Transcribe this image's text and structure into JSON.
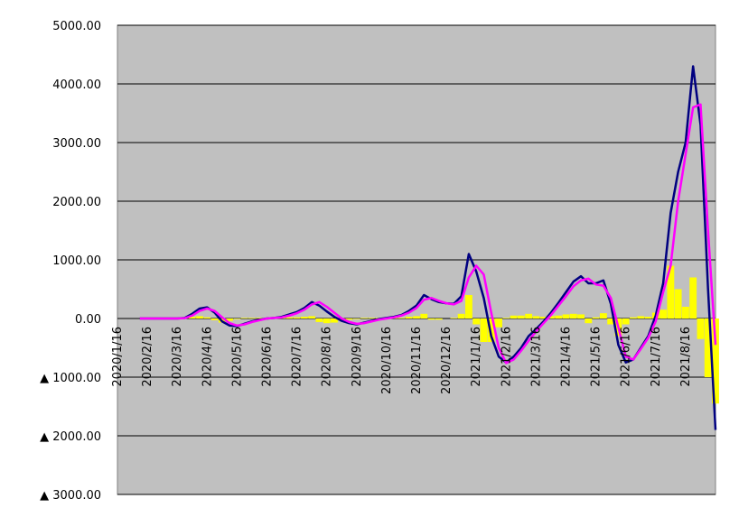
{
  "chart_data": {
    "type": "line",
    "categories": [
      "2020/1/16",
      null,
      null,
      null,
      "2020/2/16",
      null,
      null,
      null,
      "2020/3/16",
      null,
      null,
      null,
      "2020/4/16",
      null,
      null,
      null,
      "2020/5/16",
      null,
      null,
      null,
      "2020/6/16",
      null,
      null,
      null,
      "2020/7/16",
      null,
      null,
      null,
      "2020/8/16",
      null,
      null,
      null,
      "2020/9/16",
      null,
      null,
      null,
      "2020/10/16",
      null,
      null,
      null,
      "2020/11/16",
      null,
      null,
      null,
      "2020/12/16",
      null,
      null,
      null,
      "2021/1/16",
      null,
      null,
      null,
      "2021/2/16",
      null,
      null,
      null,
      "2021/3/16",
      null,
      null,
      null,
      "2021/4/16",
      null,
      null,
      null,
      "2021/5/16",
      null,
      null,
      null,
      "2021/6/16",
      null,
      null,
      null,
      "2021/7/16",
      null,
      null,
      null,
      "2021/8/16",
      null,
      null,
      null,
      null
    ],
    "series": [
      {
        "type": "bar",
        "color": "#ffff00",
        "values": [
          null,
          null,
          null,
          0,
          0,
          0,
          0,
          0,
          0,
          5,
          30,
          40,
          20,
          -30,
          -70,
          -40,
          -10,
          10,
          10,
          10,
          0,
          0,
          10,
          20,
          20,
          30,
          40,
          -60,
          -80,
          -70,
          -40,
          -20,
          -10,
          10,
          10,
          10,
          10,
          10,
          10,
          30,
          40,
          80,
          -20,
          -20,
          0,
          10,
          80,
          400,
          -100,
          -400,
          -400,
          -150,
          10,
          50,
          50,
          80,
          40,
          30,
          40,
          50,
          70,
          80,
          70,
          -80,
          20,
          90,
          -100,
          -300,
          -100,
          20,
          40,
          30,
          100,
          150,
          900,
          500,
          200,
          700,
          -350,
          -1000,
          -1450
        ]
      },
      {
        "type": "line",
        "color": "#000080",
        "values": [
          null,
          null,
          null,
          0,
          0,
          0,
          0,
          0,
          0,
          10,
          80,
          170,
          190,
          100,
          -50,
          -120,
          -130,
          -90,
          -50,
          -20,
          0,
          10,
          30,
          70,
          110,
          180,
          280,
          220,
          120,
          30,
          -40,
          -80,
          -100,
          -70,
          -40,
          -10,
          10,
          30,
          60,
          130,
          220,
          400,
          330,
          280,
          260,
          250,
          380,
          1100,
          800,
          350,
          -300,
          -650,
          -750,
          -650,
          -500,
          -300,
          -180,
          -50,
          100,
          270,
          450,
          630,
          720,
          600,
          600,
          650,
          250,
          -450,
          -750,
          -700,
          -500,
          -300,
          50,
          600,
          1800,
          2500,
          3000,
          4300,
          3300,
          500,
          -1900
        ]
      },
      {
        "type": "line",
        "color": "#ff00ff",
        "values": [
          null,
          null,
          null,
          0,
          0,
          0,
          0,
          0,
          0,
          5,
          50,
          130,
          170,
          130,
          20,
          -80,
          -120,
          -100,
          -60,
          -30,
          0,
          10,
          20,
          50,
          90,
          150,
          240,
          280,
          200,
          100,
          0,
          -60,
          -90,
          -80,
          -50,
          -20,
          0,
          20,
          50,
          100,
          180,
          320,
          350,
          300,
          260,
          240,
          300,
          700,
          900,
          750,
          100,
          -500,
          -760,
          -700,
          -550,
          -380,
          -220,
          -80,
          60,
          220,
          380,
          550,
          650,
          680,
          580,
          560,
          350,
          -150,
          -650,
          -700,
          -520,
          -330,
          -50,
          450,
          900,
          2000,
          2800,
          3600,
          3650,
          1500,
          -450
        ]
      }
    ],
    "ylim": [
      -3000,
      5000
    ],
    "yticks": [
      {
        "value": 5000,
        "label": "5000.00"
      },
      {
        "value": 4000,
        "label": "4000.00"
      },
      {
        "value": 3000,
        "label": "3000.00"
      },
      {
        "value": 2000,
        "label": "2000.00"
      },
      {
        "value": 1000,
        "label": "1000.00"
      },
      {
        "value": 0,
        "label": "0.00"
      },
      {
        "value": -1000,
        "label": "▲ 1000.00"
      },
      {
        "value": -2000,
        "label": "▲ 2000.00"
      },
      {
        "value": -3000,
        "label": "▲ 3000.00"
      }
    ],
    "grid": true,
    "background": "#c0c0c0"
  }
}
